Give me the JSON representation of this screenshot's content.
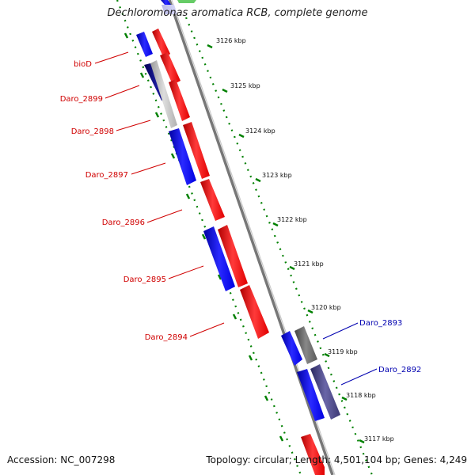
{
  "title": "Dechloromonas aromatica RCB, complete genome",
  "footer": {
    "accession": "Accession: NC_007298",
    "topology": "Topology: circular; Length: 4,501,104 bp; Genes: 4,249"
  },
  "colors": {
    "forward_cds": "#ff0000",
    "reverse_cds": "#0000ff",
    "reverse_dark": "#000080",
    "gray_gene": "#c0c0c0",
    "dark_gray_gene": "#707070",
    "purple_gene": "#4a4680",
    "backbone": "#808080",
    "tick_dots": "#008000",
    "left_labels": "#d00000",
    "right_labels": "#0000b0"
  },
  "scale": {
    "ticks": [
      "3126 kbp",
      "3125 kbp",
      "3124 kbp",
      "3123 kbp",
      "3122 kbp",
      "3121 kbp",
      "3120 kbp",
      "3119 kbp",
      "3118 kbp",
      "3117 kbp"
    ]
  },
  "genes": {
    "left": [
      "bioD",
      "Daro_2899",
      "Daro_2898",
      "Daro_2897",
      "Daro_2896",
      "Daro_2895",
      "Daro_2894"
    ],
    "right": [
      "Daro_2893",
      "Daro_2892"
    ]
  }
}
